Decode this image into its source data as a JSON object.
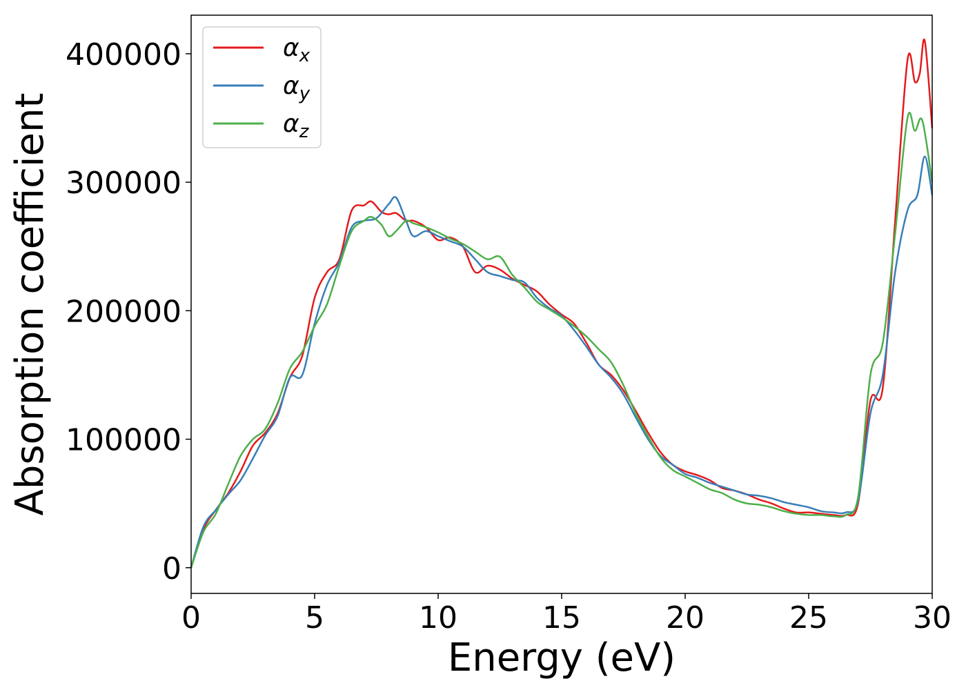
{
  "chart_data": {
    "type": "line",
    "xlabel": "Energy (eV)",
    "ylabel": "Absorption coefficient",
    "xlim": [
      0,
      30
    ],
    "ylim": [
      -20000,
      430000
    ],
    "xticks": [
      0,
      5,
      10,
      15,
      20,
      25,
      30
    ],
    "yticks": [
      0,
      100000,
      200000,
      300000,
      400000
    ],
    "grid": false,
    "legend": "top-left",
    "series": [
      {
        "name": "α",
        "subscript": "x",
        "color": "#e41a1c",
        "points": [
          [
            0,
            0
          ],
          [
            0.5,
            30000
          ],
          [
            1,
            45000
          ],
          [
            1.5,
            58000
          ],
          [
            2,
            75000
          ],
          [
            2.5,
            95000
          ],
          [
            3,
            105000
          ],
          [
            3.5,
            120000
          ],
          [
            4,
            148000
          ],
          [
            4.5,
            165000
          ],
          [
            5,
            210000
          ],
          [
            5.5,
            230000
          ],
          [
            6,
            240000
          ],
          [
            6.5,
            278000
          ],
          [
            7,
            282000
          ],
          [
            7.3,
            285000
          ],
          [
            7.7,
            277000
          ],
          [
            8,
            275000
          ],
          [
            8.3,
            276000
          ],
          [
            8.7,
            270000
          ],
          [
            9,
            270000
          ],
          [
            9.5,
            265000
          ],
          [
            10,
            255000
          ],
          [
            10.5,
            257000
          ],
          [
            11,
            250000
          ],
          [
            11.5,
            230000
          ],
          [
            12,
            235000
          ],
          [
            12.5,
            232000
          ],
          [
            13,
            225000
          ],
          [
            13.5,
            220000
          ],
          [
            14,
            215000
          ],
          [
            14.5,
            205000
          ],
          [
            15,
            197000
          ],
          [
            15.5,
            190000
          ],
          [
            16,
            175000
          ],
          [
            16.5,
            158000
          ],
          [
            17,
            150000
          ],
          [
            17.5,
            138000
          ],
          [
            18,
            122000
          ],
          [
            18.5,
            105000
          ],
          [
            19,
            90000
          ],
          [
            19.5,
            80000
          ],
          [
            20,
            75000
          ],
          [
            20.5,
            72000
          ],
          [
            21,
            68000
          ],
          [
            21.5,
            62000
          ],
          [
            22,
            60000
          ],
          [
            22.5,
            57000
          ],
          [
            23,
            53000
          ],
          [
            23.5,
            50000
          ],
          [
            24,
            46000
          ],
          [
            24.5,
            43000
          ],
          [
            25,
            43000
          ],
          [
            25.5,
            42000
          ],
          [
            26,
            41000
          ],
          [
            26.5,
            41000
          ],
          [
            27,
            50000
          ],
          [
            27.5,
            130000
          ],
          [
            28,
            140000
          ],
          [
            28.5,
            270000
          ],
          [
            29,
            395000
          ],
          [
            29.3,
            378000
          ],
          [
            29.5,
            385000
          ],
          [
            29.7,
            410000
          ],
          [
            30,
            342000
          ]
        ]
      },
      {
        "name": "α",
        "subscript": "y",
        "color": "#377eb8",
        "points": [
          [
            0,
            0
          ],
          [
            0.5,
            32000
          ],
          [
            1,
            45000
          ],
          [
            1.5,
            57000
          ],
          [
            2,
            68000
          ],
          [
            2.5,
            85000
          ],
          [
            3,
            103000
          ],
          [
            3.5,
            118000
          ],
          [
            4,
            148000
          ],
          [
            4.5,
            150000
          ],
          [
            5,
            190000
          ],
          [
            5.5,
            220000
          ],
          [
            6,
            238000
          ],
          [
            6.5,
            265000
          ],
          [
            7,
            270000
          ],
          [
            7.5,
            272000
          ],
          [
            8,
            283000
          ],
          [
            8.3,
            288000
          ],
          [
            8.7,
            270000
          ],
          [
            9,
            258000
          ],
          [
            9.5,
            262000
          ],
          [
            10,
            258000
          ],
          [
            10.5,
            254000
          ],
          [
            11,
            250000
          ],
          [
            11.5,
            240000
          ],
          [
            12,
            230000
          ],
          [
            12.5,
            227000
          ],
          [
            13,
            224000
          ],
          [
            13.5,
            222000
          ],
          [
            14,
            210000
          ],
          [
            14.5,
            202000
          ],
          [
            15,
            196000
          ],
          [
            15.5,
            185000
          ],
          [
            16,
            172000
          ],
          [
            16.5,
            158000
          ],
          [
            17,
            148000
          ],
          [
            17.5,
            135000
          ],
          [
            18,
            117000
          ],
          [
            18.5,
            100000
          ],
          [
            19,
            87000
          ],
          [
            19.5,
            80000
          ],
          [
            20,
            73000
          ],
          [
            20.5,
            70000
          ],
          [
            21,
            66000
          ],
          [
            21.5,
            63000
          ],
          [
            22,
            60000
          ],
          [
            22.5,
            57000
          ],
          [
            23,
            56000
          ],
          [
            23.5,
            54000
          ],
          [
            24,
            51000
          ],
          [
            24.5,
            49000
          ],
          [
            25,
            47000
          ],
          [
            25.5,
            44000
          ],
          [
            26,
            43000
          ],
          [
            26.5,
            43000
          ],
          [
            27,
            52000
          ],
          [
            27.5,
            120000
          ],
          [
            28,
            150000
          ],
          [
            28.5,
            230000
          ],
          [
            29,
            278000
          ],
          [
            29.4,
            290000
          ],
          [
            29.7,
            320000
          ],
          [
            30,
            290000
          ]
        ]
      },
      {
        "name": "α",
        "subscript": "z",
        "color": "#4daf4a",
        "points": [
          [
            0,
            0
          ],
          [
            0.5,
            28000
          ],
          [
            1,
            42000
          ],
          [
            1.5,
            65000
          ],
          [
            2,
            87000
          ],
          [
            2.5,
            100000
          ],
          [
            3,
            108000
          ],
          [
            3.5,
            128000
          ],
          [
            4,
            155000
          ],
          [
            4.5,
            168000
          ],
          [
            5,
            188000
          ],
          [
            5.5,
            205000
          ],
          [
            6,
            235000
          ],
          [
            6.5,
            262000
          ],
          [
            7,
            270000
          ],
          [
            7.3,
            273000
          ],
          [
            7.7,
            267000
          ],
          [
            8,
            258000
          ],
          [
            8.3,
            262000
          ],
          [
            8.7,
            270000
          ],
          [
            9,
            268000
          ],
          [
            9.5,
            265000
          ],
          [
            10,
            261000
          ],
          [
            10.5,
            256000
          ],
          [
            11,
            252000
          ],
          [
            11.5,
            246000
          ],
          [
            12,
            240000
          ],
          [
            12.5,
            242000
          ],
          [
            13,
            228000
          ],
          [
            13.5,
            218000
          ],
          [
            14,
            207000
          ],
          [
            14.5,
            201000
          ],
          [
            15,
            195000
          ],
          [
            15.5,
            188000
          ],
          [
            16,
            180000
          ],
          [
            16.5,
            170000
          ],
          [
            17,
            160000
          ],
          [
            17.5,
            142000
          ],
          [
            18,
            120000
          ],
          [
            18.5,
            102000
          ],
          [
            19,
            86000
          ],
          [
            19.5,
            76000
          ],
          [
            20,
            71000
          ],
          [
            20.5,
            66000
          ],
          [
            21,
            61000
          ],
          [
            21.5,
            58000
          ],
          [
            22,
            53000
          ],
          [
            22.5,
            50000
          ],
          [
            23,
            49000
          ],
          [
            23.5,
            47000
          ],
          [
            24,
            44000
          ],
          [
            24.5,
            42000
          ],
          [
            25,
            41000
          ],
          [
            25.5,
            41000
          ],
          [
            26,
            40000
          ],
          [
            26.5,
            41000
          ],
          [
            27,
            55000
          ],
          [
            27.5,
            150000
          ],
          [
            28,
            175000
          ],
          [
            28.5,
            260000
          ],
          [
            29,
            350000
          ],
          [
            29.3,
            340000
          ],
          [
            29.6,
            348000
          ],
          [
            30,
            300000
          ]
        ]
      }
    ]
  }
}
